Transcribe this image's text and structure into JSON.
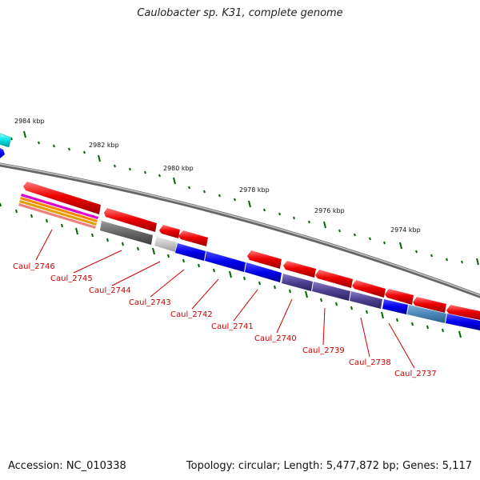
{
  "title": "Caulobacter sp. K31, complete genome",
  "accession": "Accession: NC_010338",
  "summary": "Topology: circular; Length: 5,477,872 bp; Genes: 5,117",
  "ruler_labels": [
    "2984 kbp",
    "2982 kbp",
    "2980 kbp",
    "2978 kbp",
    "2976 kbp",
    "2974 kbp"
  ],
  "gene_labels": [
    "Caul_2746",
    "Caul_2745",
    "Caul_2744",
    "Caul_2743",
    "Caul_2742",
    "Caul_2741",
    "Caul_2740",
    "Caul_2739",
    "Caul_2738",
    "Caul_2737"
  ],
  "colors": {
    "cds_forward": "#ee0000",
    "cds_reverse": "#0000ee",
    "backbone": "#888888",
    "tick": "#006600",
    "label": "#cc0000"
  }
}
